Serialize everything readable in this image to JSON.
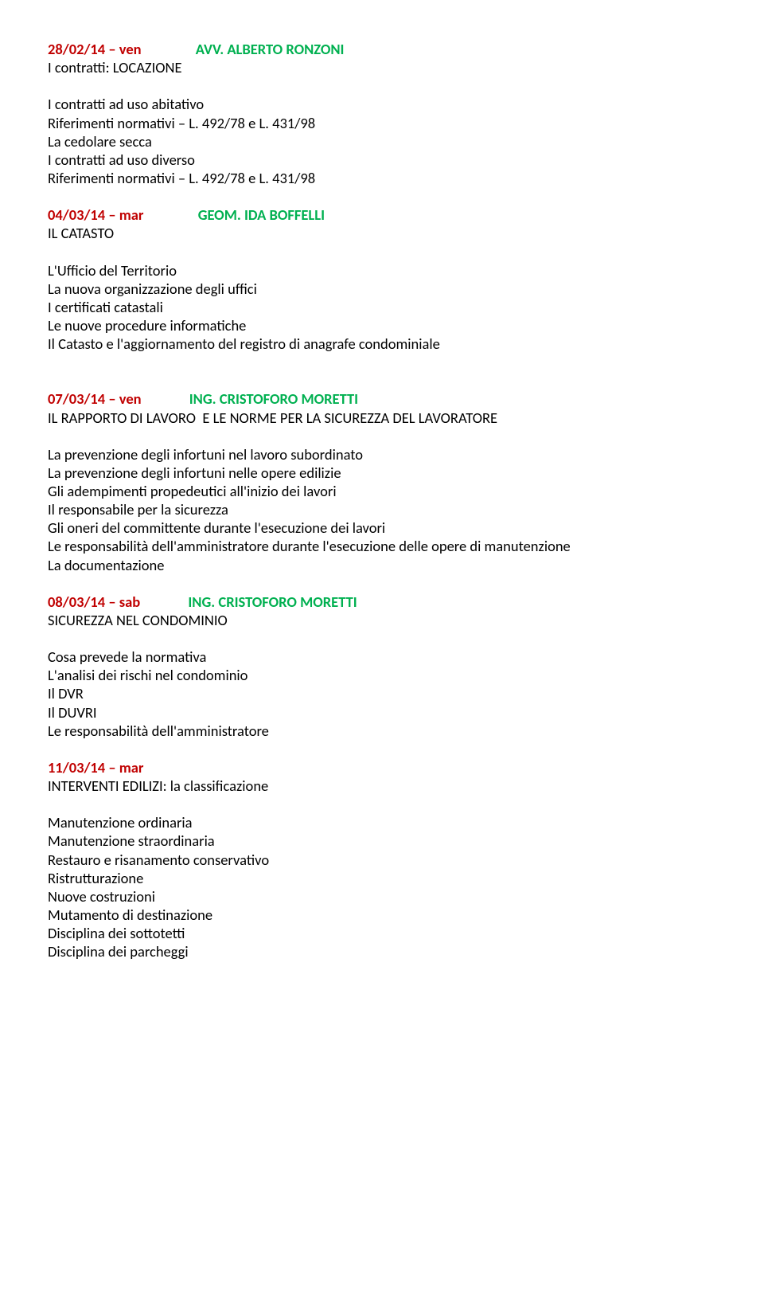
{
  "colors": {
    "date": "#c00000",
    "name": "#00b050",
    "text": "#000000",
    "background": "#ffffff"
  },
  "section1": {
    "date": "28/02/14 – ven",
    "speaker": "AVV. ALBERTO RONZONI",
    "title": "I contratti: LOCAZIONE",
    "lines": [
      "I contratti ad uso abitativo",
      "Riferimenti normativi – L. 492/78 e L. 431/98",
      "La cedolare secca",
      "I contratti ad uso diverso",
      "Riferimenti normativi – L. 492/78 e L. 431/98"
    ]
  },
  "section2": {
    "date": "04/03/14 – mar",
    "speaker": "GEOM. IDA BOFFELLI",
    "title": "IL CATASTO",
    "lines": [
      "L'Ufficio del Territorio",
      "La nuova organizzazione degli uffici",
      "I certificati catastali",
      "Le nuove procedure informatiche",
      "Il Catasto e l'aggiornamento del registro di anagrafe condominiale"
    ]
  },
  "section3": {
    "date": "07/03/14 – ven",
    "speaker": "ING. CRISTOFORO  MORETTI",
    "title": "IL RAPPORTO DI LAVORO  E LE NORME PER LA SICUREZZA DEL LAVORATORE",
    "lines": [
      "La prevenzione degli infortuni nel lavoro subordinato",
      "La prevenzione degli infortuni nelle opere edilizie",
      "Gli adempimenti propedeutici all'inizio dei lavori",
      "Il responsabile per la sicurezza",
      "Gli oneri del committente durante l'esecuzione dei lavori",
      "Le responsabilità dell'amministratore durante l'esecuzione delle opere di manutenzione",
      "La documentazione"
    ]
  },
  "section4": {
    "date": "08/03/14 – sab",
    "speaker": "ING. CRISTOFORO  MORETTI",
    "title": "SICUREZZA NEL CONDOMINIO",
    "lines": [
      "Cosa prevede la normativa",
      "L'analisi dei rischi nel condominio",
      "Il DVR",
      "Il DUVRI",
      "Le responsabilità dell'amministratore"
    ]
  },
  "section5": {
    "date": "11/03/14 – mar",
    "title": "INTERVENTI EDILIZI: la classificazione",
    "lines": [
      "Manutenzione ordinaria",
      "Manutenzione straordinaria",
      "Restauro e risanamento conservativo",
      "Ristrutturazione",
      "Nuove costruzioni",
      "Mutamento di destinazione",
      "Disciplina dei sottotetti",
      "Disciplina dei parcheggi"
    ]
  }
}
